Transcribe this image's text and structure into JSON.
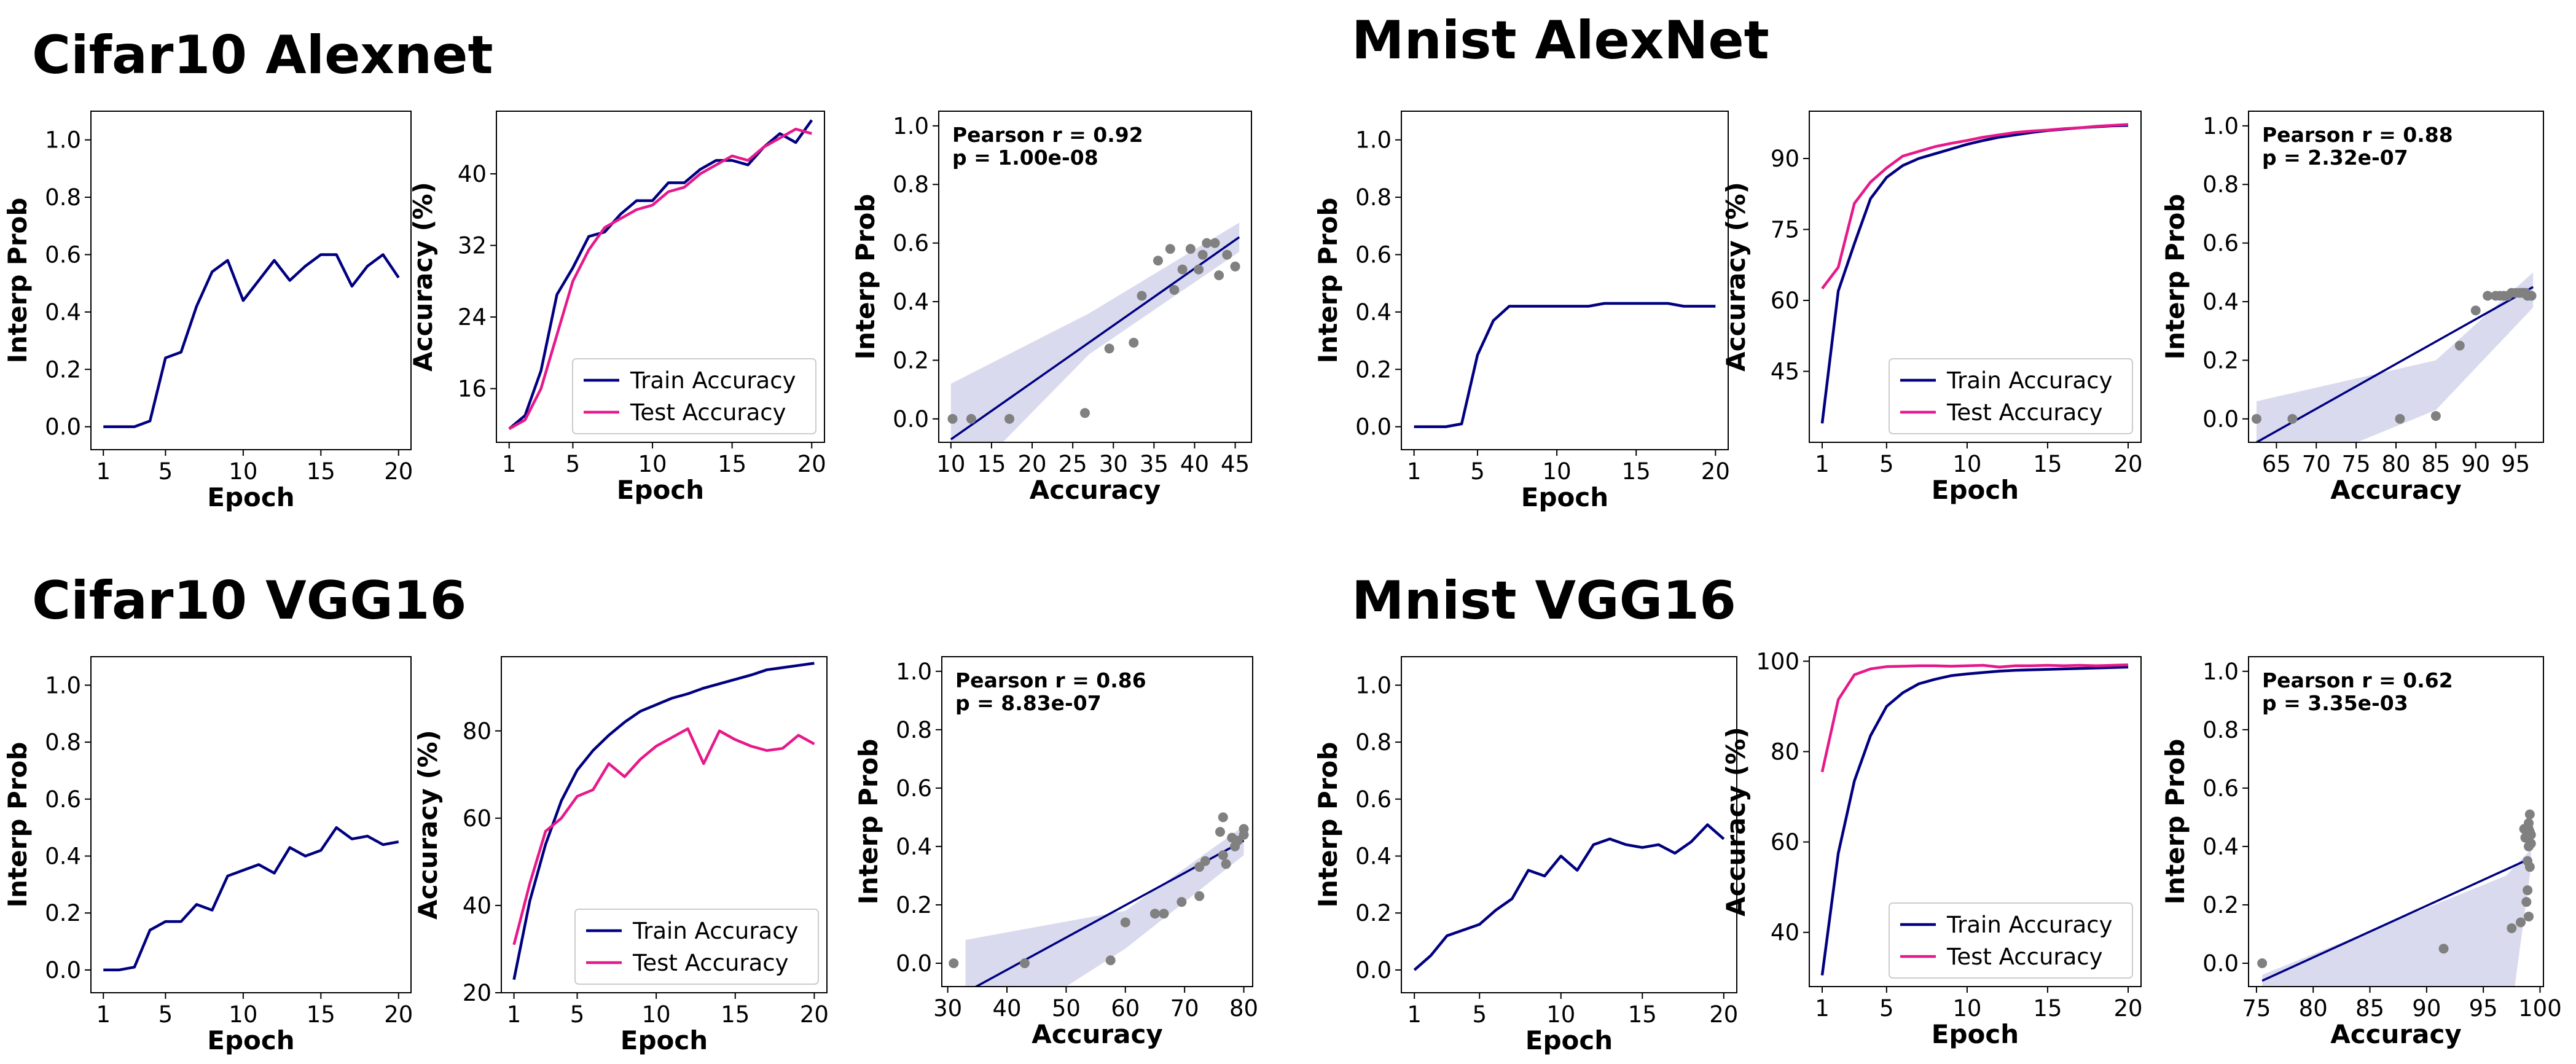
{
  "colors": {
    "train": "#000080",
    "test": "#e6198a",
    "scatter": "#808080",
    "ci_band": "#d3d3ec"
  },
  "groups": [
    {
      "title": "Cifar10 Alexnet"
    },
    {
      "title": "Mnist AlexNet"
    },
    {
      "title": "Cifar10 VGG16"
    },
    {
      "title": "Mnist VGG16"
    }
  ],
  "chart_data": [
    {
      "type": "line",
      "group": "Cifar10 Alexnet",
      "xlabel": "Epoch",
      "ylabel": "Interp Prob",
      "xlim": [
        0.2,
        20.8
      ],
      "ylim": [
        -0.08,
        1.1
      ],
      "xticks": [
        1,
        5,
        10,
        15,
        20
      ],
      "yticks": [
        0.0,
        0.2,
        0.4,
        0.6,
        0.8,
        1.0
      ],
      "series": [
        {
          "x": [
            1,
            2,
            3,
            4,
            5,
            6,
            7,
            8,
            9,
            10,
            11,
            12,
            13,
            14,
            15,
            16,
            17,
            18,
            19,
            20
          ],
          "y": [
            0,
            0,
            0,
            0.02,
            0.24,
            0.26,
            0.42,
            0.54,
            0.58,
            0.44,
            0.51,
            0.58,
            0.51,
            0.56,
            0.6,
            0.6,
            0.49,
            0.56,
            0.6,
            0.52
          ]
        }
      ]
    },
    {
      "type": "line",
      "group": "Cifar10 Alexnet",
      "xlabel": "Epoch",
      "ylabel": "Accuracy (%)",
      "xlim": [
        0.2,
        20.8
      ],
      "ylim": [
        10,
        47
      ],
      "xticks": [
        1,
        5,
        10,
        15,
        20
      ],
      "yticks": [
        16,
        24,
        32,
        40
      ],
      "legend": "lower right",
      "series": [
        {
          "name": "Train Accuracy",
          "x": [
            1,
            2,
            3,
            4,
            5,
            6,
            7,
            8,
            9,
            10,
            11,
            12,
            13,
            14,
            15,
            16,
            17,
            18,
            19,
            20
          ],
          "y": [
            11.5,
            13.0,
            18.0,
            26.5,
            29.5,
            33.0,
            33.5,
            35.5,
            37.0,
            37.0,
            39.0,
            39.0,
            40.5,
            41.5,
            41.5,
            41.0,
            43.0,
            44.5,
            43.5,
            46.0
          ]
        },
        {
          "name": "Test Accuracy",
          "x": [
            1,
            2,
            3,
            4,
            5,
            6,
            7,
            8,
            9,
            10,
            11,
            12,
            13,
            14,
            15,
            16,
            17,
            18,
            19,
            20
          ],
          "y": [
            11.5,
            12.5,
            16.0,
            22.0,
            28.0,
            31.5,
            34.0,
            35.0,
            36.0,
            36.5,
            38.0,
            38.5,
            40.0,
            41.0,
            42.0,
            41.5,
            43.0,
            44.0,
            45.0,
            44.5
          ]
        }
      ]
    },
    {
      "type": "scatter",
      "group": "Cifar10 Alexnet",
      "xlabel": "Accuracy",
      "ylabel": "Interp Prob",
      "xlim": [
        8.5,
        47
      ],
      "ylim": [
        -0.08,
        1.05
      ],
      "xticks": [
        10,
        15,
        20,
        25,
        30,
        35,
        40,
        45
      ],
      "yticks": [
        0.0,
        0.2,
        0.4,
        0.6,
        0.8,
        1.0
      ],
      "annotation": [
        "Pearson r = 0.92",
        "p = 1.00e-08"
      ],
      "points": {
        "x": [
          10.2,
          12.5,
          17.2,
          26.5,
          29.5,
          32.5,
          33.5,
          35.5,
          37.0,
          37.5,
          38.5,
          39.5,
          40.5,
          41.0,
          41.5,
          42.5,
          43.0,
          44.0,
          45.0
        ],
        "y": [
          0.0,
          0.0,
          0.0,
          0.02,
          0.24,
          0.26,
          0.42,
          0.54,
          0.58,
          0.44,
          0.51,
          0.58,
          0.51,
          0.56,
          0.6,
          0.6,
          0.49,
          0.56,
          0.52
        ]
      },
      "fit": {
        "x": [
          10,
          45.5
        ],
        "y": [
          -0.07,
          0.62
        ]
      },
      "band": {
        "x": [
          10,
          27,
          45.5
        ],
        "upper": [
          0.12,
          0.36,
          0.67
        ],
        "lower": [
          -0.26,
          0.22,
          0.57
        ]
      }
    },
    {
      "type": "line",
      "group": "Mnist AlexNet",
      "xlabel": "Epoch",
      "ylabel": "Interp Prob",
      "xlim": [
        0.2,
        20.8
      ],
      "ylim": [
        -0.08,
        1.1
      ],
      "xticks": [
        1,
        5,
        10,
        15,
        20
      ],
      "yticks": [
        0.0,
        0.2,
        0.4,
        0.6,
        0.8,
        1.0
      ],
      "series": [
        {
          "x": [
            1,
            2,
            3,
            4,
            5,
            6,
            7,
            8,
            9,
            10,
            11,
            12,
            13,
            14,
            15,
            16,
            17,
            18,
            19,
            20
          ],
          "y": [
            0,
            0,
            0,
            0.01,
            0.25,
            0.37,
            0.42,
            0.42,
            0.42,
            0.42,
            0.42,
            0.42,
            0.43,
            0.43,
            0.43,
            0.43,
            0.43,
            0.42,
            0.42,
            0.42
          ]
        }
      ]
    },
    {
      "type": "line",
      "group": "Mnist AlexNet",
      "xlabel": "Epoch",
      "ylabel": "Accuracy (%)",
      "xlim": [
        0.2,
        20.8
      ],
      "ylim": [
        30,
        100
      ],
      "xticks": [
        1,
        5,
        10,
        15,
        20
      ],
      "yticks": [
        45,
        60,
        75,
        90
      ],
      "legend": "lower right",
      "series": [
        {
          "name": "Train Accuracy",
          "x": [
            1,
            2,
            3,
            4,
            5,
            6,
            7,
            8,
            9,
            10,
            11,
            12,
            13,
            14,
            15,
            16,
            17,
            18,
            19,
            20
          ],
          "y": [
            34.0,
            62.0,
            72.0,
            81.5,
            86.0,
            88.5,
            90.0,
            91.0,
            92.0,
            93.0,
            93.8,
            94.5,
            95.0,
            95.5,
            95.9,
            96.2,
            96.5,
            96.7,
            96.9,
            97.0
          ]
        },
        {
          "name": "Test Accuracy",
          "x": [
            1,
            2,
            3,
            4,
            5,
            6,
            7,
            8,
            9,
            10,
            11,
            12,
            13,
            14,
            15,
            16,
            17,
            18,
            19,
            20
          ],
          "y": [
            62.5,
            67.0,
            80.5,
            85.0,
            88.0,
            90.5,
            91.5,
            92.5,
            93.2,
            93.8,
            94.5,
            95.0,
            95.5,
            95.8,
            96.0,
            96.3,
            96.5,
            96.8,
            97.0,
            97.2
          ]
        }
      ]
    },
    {
      "type": "scatter",
      "group": "Mnist AlexNet",
      "xlabel": "Accuracy",
      "ylabel": "Interp Prob",
      "xlim": [
        61.5,
        98.5
      ],
      "ylim": [
        -0.08,
        1.05
      ],
      "xticks": [
        65,
        70,
        75,
        80,
        85,
        90,
        95
      ],
      "yticks": [
        0.0,
        0.2,
        0.4,
        0.6,
        0.8,
        1.0
      ],
      "annotation": [
        "Pearson r = 0.88",
        "p = 2.32e-07"
      ],
      "points": {
        "x": [
          62.5,
          67.0,
          80.5,
          85.0,
          88.0,
          90.0,
          91.5,
          92.5,
          93.0,
          93.5,
          94.0,
          94.5,
          95.0,
          95.5,
          95.8,
          96.0,
          96.3,
          96.5,
          97.0
        ],
        "y": [
          0.0,
          0.0,
          0.0,
          0.01,
          0.25,
          0.37,
          0.42,
          0.42,
          0.42,
          0.42,
          0.42,
          0.43,
          0.43,
          0.43,
          0.43,
          0.43,
          0.43,
          0.42,
          0.42
        ]
      },
      "fit": {
        "x": [
          62.5,
          97.2
        ],
        "y": [
          -0.08,
          0.45
        ]
      },
      "band": {
        "x": [
          62.5,
          85,
          97.2
        ],
        "upper": [
          0.06,
          0.2,
          0.5
        ],
        "lower": [
          -0.22,
          0.03,
          0.38
        ]
      }
    },
    {
      "type": "line",
      "group": "Cifar10 VGG16",
      "xlabel": "Epoch",
      "ylabel": "Interp Prob",
      "xlim": [
        0.2,
        20.8
      ],
      "ylim": [
        -0.08,
        1.1
      ],
      "xticks": [
        1,
        5,
        10,
        15,
        20
      ],
      "yticks": [
        0.0,
        0.2,
        0.4,
        0.6,
        0.8,
        1.0
      ],
      "series": [
        {
          "x": [
            1,
            2,
            3,
            4,
            5,
            6,
            7,
            8,
            9,
            10,
            11,
            12,
            13,
            14,
            15,
            16,
            17,
            18,
            19,
            20
          ],
          "y": [
            0,
            0,
            0.01,
            0.14,
            0.17,
            0.17,
            0.23,
            0.21,
            0.33,
            0.35,
            0.37,
            0.34,
            0.43,
            0.4,
            0.42,
            0.5,
            0.46,
            0.47,
            0.44,
            0.45
          ]
        }
      ]
    },
    {
      "type": "line",
      "group": "Cifar10 VGG16",
      "xlabel": "Epoch",
      "ylabel": "Accuracy (%)",
      "xlim": [
        0.2,
        20.8
      ],
      "ylim": [
        20,
        97
      ],
      "xticks": [
        1,
        5,
        10,
        15,
        20
      ],
      "yticks": [
        20,
        40,
        60,
        80
      ],
      "legend": "lower right",
      "series": [
        {
          "name": "Train Accuracy",
          "x": [
            1,
            2,
            3,
            4,
            5,
            6,
            7,
            8,
            9,
            10,
            11,
            12,
            13,
            14,
            15,
            16,
            17,
            18,
            19,
            20
          ],
          "y": [
            23.0,
            41.0,
            54.0,
            64.0,
            71.0,
            75.5,
            79.0,
            82.0,
            84.5,
            86.0,
            87.5,
            88.5,
            89.8,
            90.8,
            91.8,
            92.8,
            94.0,
            94.5,
            95.0,
            95.5
          ]
        },
        {
          "name": "Test Accuracy",
          "x": [
            1,
            2,
            3,
            4,
            5,
            6,
            7,
            8,
            9,
            10,
            11,
            12,
            13,
            14,
            15,
            16,
            17,
            18,
            19,
            20
          ],
          "y": [
            31.0,
            45.0,
            57.0,
            60.0,
            65.0,
            66.5,
            72.5,
            69.5,
            73.5,
            76.5,
            78.5,
            80.5,
            72.5,
            80.0,
            78.0,
            76.5,
            75.5,
            76.0,
            79.0,
            77.0
          ]
        }
      ]
    },
    {
      "type": "scatter",
      "group": "Cifar10 VGG16",
      "xlabel": "Accuracy",
      "ylabel": "Interp Prob",
      "xlim": [
        29,
        81.5
      ],
      "ylim": [
        -0.08,
        1.05
      ],
      "xticks": [
        30,
        40,
        50,
        60,
        70,
        80
      ],
      "yticks": [
        0.0,
        0.2,
        0.4,
        0.6,
        0.8,
        1.0
      ],
      "annotation": [
        "Pearson r = 0.86",
        "p = 8.83e-07"
      ],
      "points": {
        "x": [
          31.0,
          43.0,
          57.5,
          60.0,
          65.0,
          66.5,
          69.5,
          72.5,
          72.5,
          73.5,
          76.0,
          76.5,
          76.5,
          77.0,
          78.0,
          78.5,
          79.0,
          80.0,
          80.0
        ],
        "y": [
          0.0,
          0.0,
          0.01,
          0.14,
          0.17,
          0.17,
          0.21,
          0.23,
          0.33,
          0.35,
          0.45,
          0.37,
          0.5,
          0.34,
          0.43,
          0.4,
          0.42,
          0.44,
          0.46
        ]
      },
      "fit": {
        "x": [
          33,
          80
        ],
        "y": [
          -0.1,
          0.42
        ]
      },
      "band": {
        "x": [
          33,
          60,
          80
        ],
        "upper": [
          0.08,
          0.18,
          0.47
        ],
        "lower": [
          -0.3,
          0.05,
          0.37
        ]
      }
    },
    {
      "type": "line",
      "group": "Mnist VGG16",
      "xlabel": "Epoch",
      "ylabel": "Interp Prob",
      "xlim": [
        0.2,
        20.8
      ],
      "ylim": [
        -0.08,
        1.1
      ],
      "xticks": [
        1,
        5,
        10,
        15,
        20
      ],
      "yticks": [
        0.0,
        0.2,
        0.4,
        0.6,
        0.8,
        1.0
      ],
      "series": [
        {
          "x": [
            1,
            2,
            3,
            4,
            5,
            6,
            7,
            8,
            9,
            10,
            11,
            12,
            13,
            14,
            15,
            16,
            17,
            18,
            19,
            20
          ],
          "y": [
            0.0,
            0.05,
            0.12,
            0.14,
            0.16,
            0.21,
            0.25,
            0.35,
            0.33,
            0.4,
            0.35,
            0.44,
            0.46,
            0.44,
            0.43,
            0.44,
            0.41,
            0.45,
            0.51,
            0.46
          ]
        }
      ]
    },
    {
      "type": "line",
      "group": "Mnist VGG16",
      "xlabel": "Epoch",
      "ylabel": "Accuracy (%)",
      "xlim": [
        0.2,
        20.8
      ],
      "ylim": [
        28,
        101
      ],
      "xticks": [
        1,
        5,
        10,
        15,
        20
      ],
      "yticks": [
        40,
        60,
        80,
        100
      ],
      "legend": "lower right",
      "series": [
        {
          "name": "Train Accuracy",
          "x": [
            1,
            2,
            3,
            4,
            5,
            6,
            7,
            8,
            9,
            10,
            11,
            12,
            13,
            14,
            15,
            16,
            17,
            18,
            19,
            20
          ],
          "y": [
            30.5,
            57.5,
            73.5,
            83.5,
            90.0,
            93.0,
            95.0,
            96.0,
            96.8,
            97.2,
            97.5,
            97.8,
            98.0,
            98.1,
            98.2,
            98.3,
            98.4,
            98.5,
            98.6,
            98.7
          ]
        },
        {
          "name": "Test Accuracy",
          "x": [
            1,
            2,
            3,
            4,
            5,
            6,
            7,
            8,
            9,
            10,
            11,
            12,
            13,
            14,
            15,
            16,
            17,
            18,
            19,
            20
          ],
          "y": [
            75.5,
            91.5,
            97.0,
            98.3,
            98.8,
            98.9,
            99.0,
            99.0,
            98.9,
            99.0,
            99.1,
            98.7,
            99.0,
            99.0,
            99.1,
            99.0,
            99.1,
            99.0,
            99.1,
            99.2
          ]
        }
      ]
    },
    {
      "type": "scatter",
      "group": "Mnist VGG16",
      "xlabel": "Accuracy",
      "ylabel": "Interp Prob",
      "xlim": [
        74.3,
        100.3
      ],
      "ylim": [
        -0.08,
        1.05
      ],
      "xticks": [
        75,
        80,
        85,
        90,
        95,
        100
      ],
      "yticks": [
        0.0,
        0.2,
        0.4,
        0.6,
        0.8,
        1.0
      ],
      "annotation": [
        "Pearson r = 0.62",
        "p = 3.35e-03"
      ],
      "points": {
        "x": [
          75.5,
          91.5,
          97.5,
          98.3,
          98.6,
          98.8,
          98.9,
          98.9,
          99.0,
          99.0,
          99.0,
          99.1,
          99.1,
          99.1,
          99.2,
          99.2,
          99.0,
          98.7,
          99.0
        ],
        "y": [
          0.0,
          0.05,
          0.12,
          0.14,
          0.46,
          0.21,
          0.25,
          0.35,
          0.46,
          0.4,
          0.44,
          0.51,
          0.33,
          0.45,
          0.41,
          0.44,
          0.16,
          0.43,
          0.48
        ]
      },
      "fit": {
        "x": [
          75.5,
          99.2
        ],
        "y": [
          -0.06,
          0.36
        ]
      },
      "band": {
        "x": [
          75.5,
          97,
          99.2
        ],
        "upper": [
          -0.04,
          0.3,
          0.39
        ],
        "lower": [
          -0.5,
          -0.3,
          0.33
        ]
      }
    }
  ]
}
